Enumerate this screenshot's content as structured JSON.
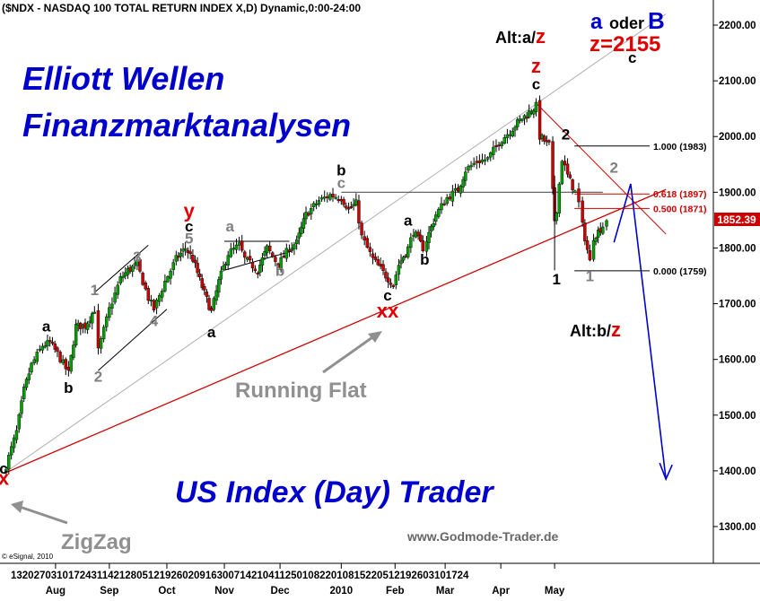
{
  "header": {
    "title": "($NDX - NASDAQ 100 TOTAL RETURN INDEX X,D) Dynamic,0:00-24:00"
  },
  "overlay_text": {
    "headline_line1": "Elliott Wellen",
    "headline_line2": "Finanzmarktanalysen",
    "footer_title": "US Index (Day) Trader",
    "website": "www.Godmode-Trader.de",
    "copyright": "© eSignal, 2010",
    "running_flat": "Running Flat",
    "zigzag": "ZigZag",
    "alt_top_prefix": "Alt:a/",
    "alt_top_suffix": "z",
    "alt_bottom_prefix": "Alt:b/",
    "alt_bottom_suffix": "z",
    "target_a": "a",
    "target_oder": "oder",
    "target_b": "B",
    "target_z": "z=2155",
    "target_c": "c"
  },
  "colors": {
    "background": "#ffffff",
    "candle_up": "#00a000",
    "candle_down": "#cc0000",
    "wick": "#000000",
    "headline_blue": "#0000cc",
    "label_red": "#e00000",
    "label_gray": "#808080",
    "support_red": "#cc0000",
    "channel_gray": "#b0b0b0",
    "forecast_blue": "#0000cc",
    "price_tag_bg": "#cc0000",
    "price_tag_fg": "#ffffff"
  },
  "fib_levels": [
    {
      "label": "1.000 (1983)",
      "value": 1983,
      "color": "#000000"
    },
    {
      "label": "0.618 (1897)",
      "value": 1897,
      "color": "#cc0000"
    },
    {
      "label": "0.500 (1871)",
      "value": 1871,
      "color": "#cc0000"
    },
    {
      "label": "0.000 (1759)",
      "value": 1759,
      "color": "#000000"
    }
  ],
  "last_price_tag": "1852.39",
  "wave_labels": [
    {
      "text": "c",
      "date": "2009-07-13",
      "price": 1395,
      "color": "#000000"
    },
    {
      "text": "x",
      "date": "2009-07-13",
      "price": 1375,
      "color": "#e00000"
    },
    {
      "text": "a",
      "date": "2009-08-05",
      "price": 1650,
      "color": "#000000"
    },
    {
      "text": "b",
      "date": "2009-08-17",
      "price": 1540,
      "color": "#000000"
    },
    {
      "text": "1",
      "date": "2009-08-31",
      "price": 1715,
      "color": "#808080"
    },
    {
      "text": "2",
      "date": "2009-09-02",
      "price": 1560,
      "color": "#808080"
    },
    {
      "text": "3",
      "date": "2009-09-23",
      "price": 1775,
      "color": "#808080"
    },
    {
      "text": "4",
      "date": "2009-10-02",
      "price": 1660,
      "color": "#808080"
    },
    {
      "text": "y",
      "date": "2009-10-21",
      "price": 1855,
      "color": "#e00000"
    },
    {
      "text": "c",
      "date": "2009-10-21",
      "price": 1830,
      "color": "#000000"
    },
    {
      "text": "5",
      "date": "2009-10-21",
      "price": 1808,
      "color": "#808080"
    },
    {
      "text": "a",
      "date": "2009-11-02",
      "price": 1640,
      "color": "#000000"
    },
    {
      "text": "a",
      "date": "2009-11-12",
      "price": 1830,
      "color": "#808080"
    },
    {
      "text": "b",
      "date": "2009-12-09",
      "price": 1750,
      "color": "#808080"
    },
    {
      "text": "b",
      "date": "2010-01-11",
      "price": 1930,
      "color": "#000000"
    },
    {
      "text": "c",
      "date": "2010-01-11",
      "price": 1908,
      "color": "#808080"
    },
    {
      "text": "a",
      "date": "2010-02-16",
      "price": 1840,
      "color": "#000000"
    },
    {
      "text": "b",
      "date": "2010-02-25",
      "price": 1770,
      "color": "#000000"
    },
    {
      "text": "c",
      "date": "2010-02-05",
      "price": 1706,
      "color": "#000000"
    },
    {
      "text": "xx",
      "date": "2010-02-05",
      "price": 1675,
      "color": "#e00000"
    },
    {
      "text": "z",
      "date": "2010-04-26",
      "price": 2115,
      "color": "#e00000"
    },
    {
      "text": "c",
      "date": "2010-04-26",
      "price": 2085,
      "color": "#000000"
    },
    {
      "text": "2",
      "date": "2010-05-12",
      "price": 1995,
      "color": "#000000"
    },
    {
      "text": "1",
      "date": "2010-05-07",
      "price": 1735,
      "color": "#000000"
    },
    {
      "text": "1",
      "date": "2010-05-25",
      "price": 1740,
      "color": "#808080"
    },
    {
      "text": "2",
      "date": "2010-06-07",
      "price": 1935,
      "color": "#808080"
    }
  ],
  "axis": {
    "y_ticks": [
      "1300.00",
      "1400.00",
      "1500.00",
      "1600.00",
      "1700.00",
      "1800.00",
      "1900.00",
      "2000.00",
      "2100.00",
      "2200.00"
    ],
    "day_labels": "13202703101724311421280512192602091630071421041125010822010815220512192603101724",
    "months": [
      {
        "label": "Aug",
        "date": "2009-08-10"
      },
      {
        "label": "Sep",
        "date": "2009-09-08"
      },
      {
        "label": "Oct",
        "date": "2009-10-09"
      },
      {
        "label": "Nov",
        "date": "2009-11-09"
      },
      {
        "label": "Dec",
        "date": "2009-12-09"
      },
      {
        "label": "2010",
        "date": "2010-01-11"
      },
      {
        "label": "Feb",
        "date": "2010-02-09"
      },
      {
        "label": "Mar",
        "date": "2010-03-08"
      },
      {
        "label": "Apr",
        "date": "2010-04-07"
      },
      {
        "label": "May",
        "date": "2010-05-06"
      }
    ]
  },
  "chart_data": {
    "type": "line",
    "title": "($NDX - NASDAQ 100 TOTAL RETURN INDEX X,D) Dynamic,0:00-24:00",
    "xlabel": "",
    "ylabel": "",
    "x_range": [
      "2009-07-13",
      "2010-06-30"
    ],
    "ylim": [
      1250,
      2250
    ],
    "y_scale": "linear",
    "grid": false,
    "candles": true,
    "series": [
      {
        "name": "",
        "points": [
          [
            "2009-07-13",
            1395
          ],
          [
            "2009-07-20",
            1470
          ],
          [
            "2009-07-24",
            1545
          ],
          [
            "2009-07-28",
            1590
          ],
          [
            "2009-08-03",
            1625
          ],
          [
            "2009-08-07",
            1630
          ],
          [
            "2009-08-11",
            1610
          ],
          [
            "2009-08-17",
            1575
          ],
          [
            "2009-08-21",
            1660
          ],
          [
            "2009-08-26",
            1660
          ],
          [
            "2009-08-31",
            1690
          ],
          [
            "2009-09-02",
            1615
          ],
          [
            "2009-09-08",
            1690
          ],
          [
            "2009-09-14",
            1745
          ],
          [
            "2009-09-18",
            1760
          ],
          [
            "2009-09-23",
            1770
          ],
          [
            "2009-09-29",
            1710
          ],
          [
            "2009-10-02",
            1690
          ],
          [
            "2009-10-08",
            1740
          ],
          [
            "2009-10-14",
            1780
          ],
          [
            "2009-10-19",
            1800
          ],
          [
            "2009-10-23",
            1780
          ],
          [
            "2009-10-28",
            1730
          ],
          [
            "2009-11-02",
            1685
          ],
          [
            "2009-11-06",
            1740
          ],
          [
            "2009-11-11",
            1790
          ],
          [
            "2009-11-17",
            1805
          ],
          [
            "2009-11-20",
            1780
          ],
          [
            "2009-11-27",
            1760
          ],
          [
            "2009-12-02",
            1800
          ],
          [
            "2009-12-08",
            1770
          ],
          [
            "2009-12-14",
            1800
          ],
          [
            "2009-12-18",
            1810
          ],
          [
            "2009-12-23",
            1860
          ],
          [
            "2009-12-30",
            1885
          ],
          [
            "2010-01-05",
            1895
          ],
          [
            "2010-01-11",
            1890
          ],
          [
            "2010-01-15",
            1870
          ],
          [
            "2010-01-19",
            1880
          ],
          [
            "2010-01-22",
            1820
          ],
          [
            "2010-01-28",
            1780
          ],
          [
            "2010-02-04",
            1750
          ],
          [
            "2010-02-08",
            1735
          ],
          [
            "2010-02-11",
            1770
          ],
          [
            "2010-02-16",
            1800
          ],
          [
            "2010-02-19",
            1830
          ],
          [
            "2010-02-24",
            1800
          ],
          [
            "2010-02-26",
            1815
          ],
          [
            "2010-03-03",
            1860
          ],
          [
            "2010-03-09",
            1890
          ],
          [
            "2010-03-15",
            1905
          ],
          [
            "2010-03-19",
            1940
          ],
          [
            "2010-03-25",
            1955
          ],
          [
            "2010-03-31",
            1960
          ],
          [
            "2010-04-06",
            1990
          ],
          [
            "2010-04-12",
            2010
          ],
          [
            "2010-04-16",
            2025
          ],
          [
            "2010-04-21",
            2040
          ],
          [
            "2010-04-26",
            2055
          ],
          [
            "2010-04-28",
            2000
          ],
          [
            "2010-05-03",
            1985
          ],
          [
            "2010-05-05",
            1900
          ],
          [
            "2010-05-06",
            1850
          ],
          [
            "2010-05-07",
            1870
          ],
          [
            "2010-05-10",
            1960
          ],
          [
            "2010-05-13",
            1930
          ],
          [
            "2010-05-17",
            1900
          ],
          [
            "2010-05-19",
            1880
          ],
          [
            "2010-05-21",
            1840
          ],
          [
            "2010-05-25",
            1775
          ],
          [
            "2010-05-27",
            1820
          ],
          [
            "2010-06-01",
            1840
          ],
          [
            "2010-06-03",
            1852
          ]
        ]
      }
    ],
    "annotation_lines": [
      {
        "name": "red-support-line",
        "from": [
          "2009-07-13",
          1395
        ],
        "to": [
          "2010-07-05",
          1905
        ]
      },
      {
        "name": "gray-channel-line",
        "from": [
          "2009-07-13",
          1395
        ],
        "to": [
          "2010-07-05",
          2220
        ]
      },
      {
        "name": "red-resistance-line",
        "from": [
          "2010-04-26",
          2060
        ],
        "to": [
          "2010-07-05",
          1825
        ]
      },
      {
        "name": "b-level-line",
        "from": [
          "2010-01-11",
          1900
        ],
        "to": [
          "2010-06-01",
          1900
        ]
      },
      {
        "name": "channel-upper",
        "from": [
          "2009-08-31",
          1720
        ],
        "to": [
          "2009-09-29",
          1805
        ]
      },
      {
        "name": "channel-lower",
        "from": [
          "2009-09-02",
          1580
        ],
        "to": [
          "2009-10-09",
          1690
        ]
      },
      {
        "name": "flat-top",
        "from": [
          "2009-11-09",
          1812
        ],
        "to": [
          "2009-12-14",
          1812
        ]
      },
      {
        "name": "flat-lower",
        "from": [
          "2009-11-09",
          1760
        ],
        "to": [
          "2009-12-16",
          1795
        ]
      }
    ],
    "forecast_path": [
      [
        "2010-06-07",
        1810
      ],
      [
        "2010-06-16",
        1915
      ],
      [
        "2010-07-05",
        1385
      ]
    ]
  }
}
